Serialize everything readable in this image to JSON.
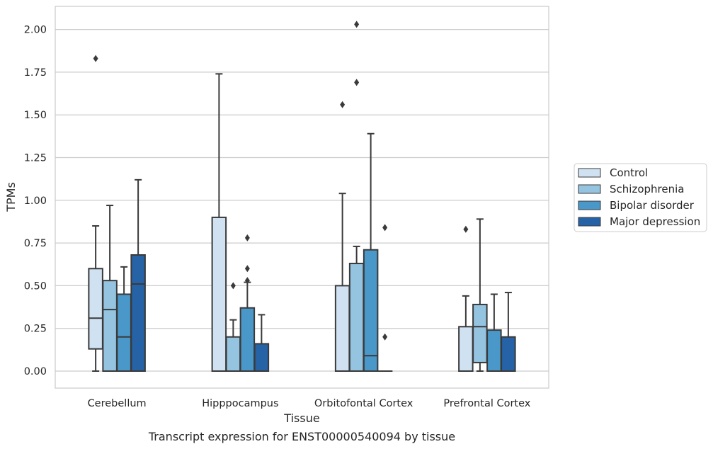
{
  "chart_data": {
    "type": "box",
    "xlabel": "Tissue",
    "ylabel": "TPMs",
    "caption": "Transcript expression for ENST00000540094 by tissue",
    "ylim": [
      -0.1,
      2.14
    ],
    "yticks": [
      "0.00",
      "0.25",
      "0.50",
      "0.75",
      "1.00",
      "1.25",
      "1.50",
      "1.75",
      "2.00"
    ],
    "grid": true,
    "legend_position": "right",
    "categories": [
      "Cerebellum",
      "Hipppocampus",
      "Orbitofontal Cortex",
      "Prefrontal Cortex"
    ],
    "series": [
      {
        "name": "Control",
        "color": "#d0e1f2",
        "boxes": [
          {
            "whisker_low": 0.0,
            "q1": 0.13,
            "median": 0.31,
            "q3": 0.6,
            "whisker_high": 0.85,
            "outliers": [
              1.83
            ]
          },
          {
            "whisker_low": 0.0,
            "q1": 0.0,
            "median": 0.0,
            "q3": 0.9,
            "whisker_high": 1.74,
            "outliers": []
          },
          {
            "whisker_low": 0.0,
            "q1": 0.0,
            "median": 0.0,
            "q3": 0.5,
            "whisker_high": 1.04,
            "outliers": [
              1.56
            ]
          },
          {
            "whisker_low": 0.0,
            "q1": 0.0,
            "median": 0.0,
            "q3": 0.26,
            "whisker_high": 0.44,
            "outliers": [
              0.83
            ]
          }
        ]
      },
      {
        "name": "Schizophrenia",
        "color": "#94c4df",
        "boxes": [
          {
            "whisker_low": 0.0,
            "q1": 0.0,
            "median": 0.36,
            "q3": 0.53,
            "whisker_high": 0.97,
            "outliers": []
          },
          {
            "whisker_low": 0.0,
            "q1": 0.0,
            "median": 0.0,
            "q3": 0.2,
            "whisker_high": 0.3,
            "outliers": [
              0.5
            ]
          },
          {
            "whisker_low": 0.0,
            "q1": 0.0,
            "median": 0.0,
            "q3": 0.63,
            "whisker_high": 0.73,
            "outliers": [
              1.69,
              2.03
            ]
          },
          {
            "whisker_low": 0.0,
            "q1": 0.05,
            "median": 0.26,
            "q3": 0.39,
            "whisker_high": 0.89,
            "outliers": []
          }
        ]
      },
      {
        "name": "Bipolar disorder",
        "color": "#4a98c9",
        "boxes": [
          {
            "whisker_low": 0.0,
            "q1": 0.0,
            "median": 0.2,
            "q3": 0.45,
            "whisker_high": 0.61,
            "outliers": []
          },
          {
            "whisker_low": 0.0,
            "q1": 0.0,
            "median": 0.0,
            "q3": 0.37,
            "whisker_high": 0.52,
            "outliers": [
              0.53,
              0.6,
              0.78
            ]
          },
          {
            "whisker_low": 0.0,
            "q1": 0.0,
            "median": 0.09,
            "q3": 0.71,
            "whisker_high": 1.39,
            "outliers": []
          },
          {
            "whisker_low": 0.0,
            "q1": 0.0,
            "median": 0.0,
            "q3": 0.24,
            "whisker_high": 0.45,
            "outliers": []
          }
        ]
      },
      {
        "name": "Major depression",
        "color": "#2563a6",
        "boxes": [
          {
            "whisker_low": 0.0,
            "q1": 0.0,
            "median": 0.51,
            "q3": 0.68,
            "whisker_high": 1.12,
            "outliers": []
          },
          {
            "whisker_low": 0.0,
            "q1": 0.0,
            "median": 0.0,
            "q3": 0.16,
            "whisker_high": 0.33,
            "outliers": []
          },
          {
            "whisker_low": 0.0,
            "q1": 0.0,
            "median": 0.0,
            "q3": 0.0,
            "whisker_high": 0.0,
            "outliers": [
              0.2,
              0.84
            ]
          },
          {
            "whisker_low": 0.0,
            "q1": 0.0,
            "median": 0.0,
            "q3": 0.2,
            "whisker_high": 0.46,
            "outliers": []
          }
        ]
      }
    ]
  }
}
